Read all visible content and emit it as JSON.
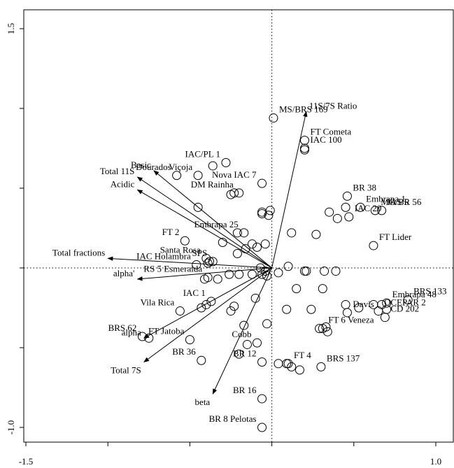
{
  "chart_data": {
    "type": "scatter",
    "subtype": "biplot",
    "title": "",
    "xlabel": "",
    "ylabel": "",
    "xlim": [
      -1.5,
      1.0
    ],
    "ylim": [
      -1.0,
      1.5
    ],
    "grid": false,
    "reference_lines": {
      "x": 0,
      "y": 0,
      "style": "dotted"
    },
    "x_ticks": [
      {
        "value": -1.5,
        "label": "-1.5"
      },
      {
        "value": -1.0,
        "label": ""
      },
      {
        "value": -0.5,
        "label": ""
      },
      {
        "value": 0.0,
        "label": ""
      },
      {
        "value": 0.5,
        "label": ""
      },
      {
        "value": 1.0,
        "label": "1.0"
      }
    ],
    "y_ticks": [
      {
        "value": -1.0,
        "label": "-1.0"
      },
      {
        "value": -0.5,
        "label": ""
      },
      {
        "value": 0.0,
        "label": ""
      },
      {
        "value": 0.5,
        "label": ""
      },
      {
        "value": 1.0,
        "label": ""
      },
      {
        "value": 1.5,
        "label": "1.5"
      }
    ],
    "variables": [
      {
        "name": "11S/7S Ratio",
        "x": 0.21,
        "y": 0.98
      },
      {
        "name": "Basic",
        "x": -0.72,
        "y": 0.61
      },
      {
        "name": "Total 11S",
        "x": -0.82,
        "y": 0.57
      },
      {
        "name": "Acidic",
        "x": -0.82,
        "y": 0.49
      },
      {
        "name": "Total fractions",
        "x": -1.0,
        "y": 0.06
      },
      {
        "name": "alpha'",
        "x": -0.82,
        "y": -0.07
      },
      {
        "name": "alpha",
        "x": -0.78,
        "y": -0.44
      },
      {
        "name": "Total 7S",
        "x": -0.78,
        "y": -0.59
      },
      {
        "name": "beta",
        "x": -0.36,
        "y": -0.79
      }
    ],
    "points": [
      {
        "label": "MS/BRS 169",
        "x": 0.01,
        "y": 0.94
      },
      {
        "label": "IAC 100",
        "x": 0.2,
        "y": 0.75
      },
      {
        "label": "",
        "x": 0.2,
        "y": 0.74
      },
      {
        "label": "IAC/PL 1",
        "x": -0.28,
        "y": 0.66
      },
      {
        "label": "",
        "x": -0.36,
        "y": 0.64
      },
      {
        "label": "Viçoja",
        "x": -0.45,
        "y": 0.58
      },
      {
        "label": "Nova IAC 7",
        "x": -0.06,
        "y": 0.53
      },
      {
        "label": "",
        "x": -0.23,
        "y": 0.47
      },
      {
        "label": "DM Rainha",
        "x": -0.2,
        "y": 0.47
      },
      {
        "label": "",
        "x": -0.25,
        "y": 0.46
      },
      {
        "label": "",
        "x": -0.45,
        "y": 0.38
      },
      {
        "label": "",
        "x": -0.01,
        "y": 0.36
      },
      {
        "label": "",
        "x": -0.06,
        "y": 0.35
      },
      {
        "label": "",
        "x": -0.06,
        "y": 0.34
      },
      {
        "label": "",
        "x": -0.02,
        "y": 0.33
      },
      {
        "label": "BR 38",
        "x": 0.46,
        "y": 0.45
      },
      {
        "label": "MG/BR 56",
        "x": 0.63,
        "y": 0.36
      },
      {
        "label": "Embrapa 1",
        "x": 0.54,
        "y": 0.38
      },
      {
        "label": "",
        "x": 0.45,
        "y": 0.38
      },
      {
        "label": "IAS 5",
        "x": 0.67,
        "y": 0.36
      },
      {
        "label": "",
        "x": 0.35,
        "y": 0.35
      },
      {
        "label": "IAC 20",
        "x": 0.47,
        "y": 0.32
      },
      {
        "label": "",
        "x": 0.4,
        "y": 0.31
      },
      {
        "label": "FT Lider",
        "x": 0.62,
        "y": 0.14
      },
      {
        "label": "",
        "x": 0.12,
        "y": 0.22
      },
      {
        "label": "",
        "x": 0.27,
        "y": 0.21
      },
      {
        "label": "Embrapa 25",
        "x": -0.17,
        "y": 0.22
      },
      {
        "label": "",
        "x": -0.21,
        "y": 0.22
      },
      {
        "label": "FT 2",
        "x": -0.53,
        "y": 0.17
      },
      {
        "label": "",
        "x": -0.04,
        "y": 0.15
      },
      {
        "label": "",
        "x": -0.3,
        "y": 0.16
      },
      {
        "label": "",
        "x": -0.12,
        "y": 0.15
      },
      {
        "label": "",
        "x": -0.16,
        "y": 0.12
      },
      {
        "label": "",
        "x": -0.09,
        "y": 0.13
      },
      {
        "label": "",
        "x": -0.21,
        "y": 0.09
      },
      {
        "label": "Santa Rosa",
        "x": -0.4,
        "y": 0.06
      },
      {
        "label": "SPS",
        "x": -0.36,
        "y": 0.04
      },
      {
        "label": "",
        "x": -0.38,
        "y": 0.04
      },
      {
        "label": "",
        "x": -0.39,
        "y": 0.03
      },
      {
        "label": "IAC Holambra",
        "x": -0.46,
        "y": 0.02
      },
      {
        "label": "",
        "x": 0.1,
        "y": 0.01
      },
      {
        "label": "",
        "x": 0.2,
        "y": -0.02
      },
      {
        "label": "",
        "x": 0.04,
        "y": -0.03
      },
      {
        "label": "",
        "x": 0.21,
        "y": -0.02
      },
      {
        "label": "",
        "x": 0.32,
        "y": -0.02
      },
      {
        "label": "",
        "x": 0.39,
        "y": -0.02
      },
      {
        "label": "",
        "x": -0.07,
        "y": 0.0
      },
      {
        "label": "",
        "x": -0.04,
        "y": -0.02
      },
      {
        "label": "",
        "x": -0.06,
        "y": -0.04
      },
      {
        "label": "",
        "x": -0.03,
        "y": -0.05
      },
      {
        "label": "",
        "x": -0.12,
        "y": -0.04
      },
      {
        "label": "",
        "x": -0.2,
        "y": -0.04
      },
      {
        "label": "",
        "x": -0.26,
        "y": -0.04
      },
      {
        "label": "RS 5 Esmeralda",
        "x": -0.39,
        "y": -0.06
      },
      {
        "label": "",
        "x": -0.41,
        "y": -0.07
      },
      {
        "label": "",
        "x": -0.33,
        "y": -0.07
      },
      {
        "label": "",
        "x": 0.15,
        "y": -0.13
      },
      {
        "label": "",
        "x": 0.31,
        "y": -0.13
      },
      {
        "label": "",
        "x": -0.1,
        "y": -0.19
      },
      {
        "label": "IAC 1",
        "x": -0.37,
        "y": -0.21
      },
      {
        "label": "",
        "x": -0.4,
        "y": -0.23
      },
      {
        "label": "",
        "x": -0.43,
        "y": -0.25
      },
      {
        "label": "",
        "x": -0.23,
        "y": -0.24
      },
      {
        "label": "",
        "x": -0.25,
        "y": -0.27
      },
      {
        "label": "Vila Rica",
        "x": -0.56,
        "y": -0.27
      },
      {
        "label": "",
        "x": 0.09,
        "y": -0.26
      },
      {
        "label": "",
        "x": 0.24,
        "y": -0.26
      },
      {
        "label": "",
        "x": 0.45,
        "y": -0.23
      },
      {
        "label": "",
        "x": 0.53,
        "y": -0.25
      },
      {
        "label": "Embrapa 48",
        "x": 0.7,
        "y": -0.22
      },
      {
        "label": "",
        "x": 0.62,
        "y": -0.23
      },
      {
        "label": "",
        "x": 0.67,
        "y": -0.23
      },
      {
        "label": "OCEPAR 2",
        "x": 0.65,
        "y": -0.27
      },
      {
        "label": "",
        "x": 0.7,
        "y": -0.26
      },
      {
        "label": "CD 202",
        "x": 0.69,
        "y": -0.31
      },
      {
        "label": "Davis",
        "x": 0.46,
        "y": -0.28
      },
      {
        "label": "BRS 133",
        "x": 0.83,
        "y": -0.2
      },
      {
        "label": "",
        "x": -0.17,
        "y": -0.36
      },
      {
        "label": "",
        "x": -0.03,
        "y": -0.35
      },
      {
        "label": "",
        "x": 0.33,
        "y": -0.37
      },
      {
        "label": "FT 6 Veneza",
        "x": 0.31,
        "y": -0.38
      },
      {
        "label": "",
        "x": 0.29,
        "y": -0.38
      },
      {
        "label": "",
        "x": 0.34,
        "y": -0.4
      },
      {
        "label": "Cobb",
        "x": -0.09,
        "y": -0.47
      },
      {
        "label": "",
        "x": -0.15,
        "y": -0.48
      },
      {
        "label": "FT Jatoba",
        "x": -0.5,
        "y": -0.45
      },
      {
        "label": "",
        "x": -0.75,
        "y": -0.44
      },
      {
        "label": "BRS 62",
        "x": -0.79,
        "y": -0.43
      },
      {
        "label": "",
        "x": -0.2,
        "y": -0.54
      },
      {
        "label": "BR 36",
        "x": -0.43,
        "y": -0.58
      },
      {
        "label": "BR 12",
        "x": -0.06,
        "y": -0.59
      },
      {
        "label": "FT 4",
        "x": 0.1,
        "y": -0.6
      },
      {
        "label": "",
        "x": 0.12,
        "y": -0.62
      },
      {
        "label": "",
        "x": 0.09,
        "y": -0.6
      },
      {
        "label": "",
        "x": 0.04,
        "y": -0.6
      },
      {
        "label": "BRS 137",
        "x": 0.3,
        "y": -0.62
      },
      {
        "label": "",
        "x": 0.17,
        "y": -0.64
      },
      {
        "label": "BR 16",
        "x": -0.06,
        "y": -0.82
      },
      {
        "label": "BR 8 Pelotas",
        "x": -0.06,
        "y": -1.0
      },
      {
        "label": "Dourados",
        "x": -0.58,
        "y": 0.58
      },
      {
        "label": "FT Cometa",
        "x": 0.2,
        "y": 0.8
      }
    ]
  }
}
